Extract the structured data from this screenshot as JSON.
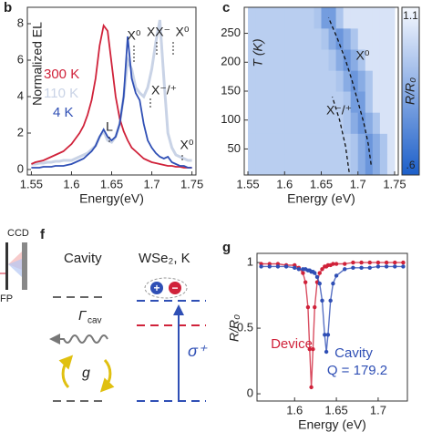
{
  "panel_labels": [
    "b",
    "c",
    "f",
    "g"
  ],
  "setup": {
    "ccd": "CCD",
    "fp": "FP"
  },
  "diagram": {
    "cavity": "Cavity",
    "material": "WSe₂, K",
    "gamma": "Γ",
    "gamma_sub": "cav",
    "coupling": "g",
    "polarization": "σ⁺",
    "plus": "+",
    "minus": "−"
  },
  "chart_data": [
    {
      "type": "line",
      "xlabel": "Energy(eV)",
      "ylabel": "Normalized EL",
      "x": [
        1.55,
        1.555,
        1.56,
        1.565,
        1.57,
        1.575,
        1.58,
        1.585,
        1.59,
        1.595,
        1.6,
        1.605,
        1.61,
        1.615,
        1.62,
        1.625,
        1.63,
        1.635,
        1.64,
        1.645,
        1.65,
        1.655,
        1.66,
        1.665,
        1.67,
        1.675,
        1.68,
        1.685,
        1.69,
        1.695,
        1.7,
        1.705,
        1.71,
        1.715,
        1.72,
        1.725,
        1.73,
        1.735,
        1.74,
        1.745,
        1.75
      ],
      "series": [
        {
          "name": "110 K",
          "color": "#c9d3e6",
          "values": [
            0.3,
            0.3,
            0.35,
            0.35,
            0.4,
            0.4,
            0.45,
            0.45,
            0.5,
            0.5,
            0.5,
            0.6,
            0.7,
            0.8,
            0.9,
            1.1,
            1.3,
            1.8,
            2.1,
            1.6,
            1.5,
            1.8,
            2.5,
            4.0,
            6.0,
            5.5,
            4.5,
            4.2,
            4.0,
            4.5,
            5.5,
            7.0,
            8.2,
            5.0,
            2.0,
            1.2,
            0.8,
            0.7,
            0.6,
            0.5,
            0.5
          ]
        },
        {
          "name": "300 K",
          "color": "#d0223a",
          "values": [
            0.3,
            0.4,
            0.45,
            0.5,
            0.6,
            0.7,
            0.8,
            0.9,
            1.0,
            1.2,
            1.4,
            1.7,
            2.0,
            2.4,
            3.0,
            3.8,
            5.0,
            6.8,
            7.9,
            7.6,
            5.8,
            4.0,
            2.8,
            2.1,
            1.6,
            1.2,
            1.0,
            0.8,
            0.6,
            0.5,
            0.4,
            0.35,
            0.3,
            0.25,
            0.2,
            0.2,
            0.15,
            0.15,
            0.1,
            0.1,
            0.1
          ]
        },
        {
          "name": "4 K",
          "color": "#2f4fb5",
          "values": [
            0.1,
            0.1,
            0.1,
            0.15,
            0.15,
            0.15,
            0.2,
            0.2,
            0.2,
            0.25,
            0.3,
            0.4,
            0.5,
            0.6,
            0.8,
            1.0,
            1.3,
            1.8,
            2.2,
            1.8,
            1.6,
            1.8,
            2.5,
            4.0,
            7.3,
            5.0,
            4.2,
            3.8,
            2.5,
            1.6,
            1.2,
            0.9,
            0.7,
            0.6,
            0.7,
            0.4,
            0.3,
            0.2,
            0.2,
            0.1,
            0.1
          ]
        }
      ],
      "xlim": [
        1.545,
        1.755
      ],
      "xticks": [
        1.55,
        1.6,
        1.65,
        1.7,
        1.75
      ],
      "ylim": [
        -0.3,
        8.9
      ],
      "yticks": [
        0,
        2,
        4,
        6,
        8
      ],
      "annotations": [
        "X⁰",
        "XX⁻",
        "X⁰",
        "X⁻/⁺",
        "L",
        "X⁰"
      ]
    },
    {
      "type": "heatmap",
      "xlabel": "Energy (eV)",
      "ylabel": "T (K)",
      "x": [
        1.555,
        1.565,
        1.575,
        1.585,
        1.595,
        1.605,
        1.615,
        1.625,
        1.635,
        1.645,
        1.655,
        1.665,
        1.675,
        1.685,
        1.695,
        1.705,
        1.715,
        1.725,
        1.735,
        1.745
      ],
      "y": [
        23,
        59,
        95,
        132,
        168,
        204,
        241,
        277
      ],
      "values": [
        [
          0.96,
          0.96,
          0.96,
          0.96,
          0.96,
          0.96,
          0.96,
          0.96,
          0.96,
          0.96,
          0.96,
          0.96,
          0.96,
          0.96,
          0.93,
          0.85,
          0.78,
          0.85,
          0.93,
          1.03
        ],
        [
          0.96,
          0.96,
          0.96,
          0.96,
          0.96,
          0.96,
          0.96,
          0.96,
          0.96,
          0.96,
          0.96,
          0.96,
          0.96,
          0.96,
          0.93,
          0.85,
          0.78,
          0.85,
          0.93,
          1.03
        ],
        [
          0.96,
          0.96,
          0.96,
          0.96,
          0.96,
          0.96,
          0.96,
          0.96,
          0.96,
          0.96,
          0.96,
          0.96,
          0.96,
          0.93,
          0.85,
          0.78,
          0.85,
          0.93,
          1.03,
          1.03
        ],
        [
          0.96,
          0.96,
          0.96,
          0.96,
          0.96,
          0.96,
          0.96,
          0.96,
          0.96,
          0.96,
          0.96,
          0.96,
          0.96,
          0.93,
          0.8,
          0.8,
          0.93,
          1.03,
          1.03,
          1.03
        ],
        [
          0.96,
          0.96,
          0.96,
          0.96,
          0.96,
          0.96,
          0.96,
          0.96,
          0.96,
          0.96,
          0.96,
          0.96,
          0.93,
          0.85,
          0.78,
          0.85,
          0.93,
          1.03,
          1.03,
          1.03
        ],
        [
          0.96,
          0.96,
          0.96,
          0.96,
          0.96,
          0.96,
          0.96,
          0.96,
          0.96,
          0.96,
          0.96,
          0.93,
          0.85,
          0.78,
          0.85,
          0.93,
          1.03,
          1.03,
          1.03,
          1.03
        ],
        [
          0.96,
          0.96,
          0.96,
          0.96,
          0.96,
          0.96,
          0.96,
          0.96,
          0.96,
          0.96,
          0.93,
          0.85,
          0.78,
          0.85,
          0.93,
          1.03,
          1.03,
          1.03,
          1.03,
          1.03
        ],
        [
          0.96,
          0.96,
          0.96,
          0.96,
          0.96,
          0.96,
          0.96,
          0.96,
          0.96,
          0.93,
          0.8,
          0.8,
          0.93,
          1.03,
          1.03,
          1.03,
          1.03,
          1.03,
          1.03,
          1.03
        ]
      ],
      "xlim": [
        1.545,
        1.755
      ],
      "xticks": [
        1.55,
        1.6,
        1.65,
        1.7,
        1.75
      ],
      "ylim": [
        5,
        295
      ],
      "yticks": [
        50,
        100,
        150,
        200,
        250
      ],
      "zlim": [
        0.6,
        1.1
      ],
      "colors": [
        "#1d5fc9",
        "#f6f9ff"
      ],
      "colorbar_label": "R/R₀",
      "colorbar_ticks": [
        1.1,
        {
          "value": 0.6,
          "label": ".6"
        }
      ],
      "guides": [
        {
          "name": "X⁰",
          "x": [
            1.718,
            1.714,
            1.708,
            1.7,
            1.692,
            1.683,
            1.672,
            1.66
          ],
          "y": [
            23,
            59,
            95,
            132,
            168,
            204,
            241,
            277
          ]
        },
        {
          "name": "X⁻/⁺",
          "x": [
            1.688,
            1.683,
            1.675,
            1.665
          ],
          "y": [
            10,
            55,
            100,
            140
          ]
        }
      ]
    },
    {
      "type": "scatter",
      "xlabel": "Energy (eV)",
      "ylabel": "R/R₀",
      "x": [
        1.56,
        1.57,
        1.58,
        1.59,
        1.6,
        1.605,
        1.61,
        1.613,
        1.616,
        1.618,
        1.62,
        1.622,
        1.624,
        1.627,
        1.63,
        1.633,
        1.636,
        1.638,
        1.64,
        1.643,
        1.646,
        1.65,
        1.66,
        1.67,
        1.68,
        1.69,
        1.7,
        1.71,
        1.72,
        1.73
      ],
      "series": [
        {
          "name": "Device",
          "color": "#d0223a",
          "values": [
            0.99,
            0.99,
            0.99,
            0.98,
            0.98,
            0.96,
            0.92,
            0.85,
            0.66,
            0.34,
            0.05,
            0.34,
            0.66,
            0.85,
            0.92,
            0.95,
            0.97,
            0.97,
            0.98,
            0.98,
            0.99,
            0.99,
            0.99,
            1.0,
            1.0,
            1.0,
            1.0,
            1.0,
            1.0,
            1.0
          ]
        },
        {
          "name": "Cavity",
          "color": "#2f4fb5",
          "values": [
            0.97,
            0.97,
            0.97,
            0.97,
            0.96,
            0.95,
            0.95,
            0.95,
            0.94,
            0.94,
            0.93,
            0.93,
            0.92,
            0.89,
            0.84,
            0.71,
            0.45,
            0.32,
            0.45,
            0.71,
            0.84,
            0.9,
            0.95,
            0.96,
            0.96,
            0.96,
            0.97,
            0.97,
            0.97,
            0.97
          ]
        }
      ],
      "annotation": "Q = 179.2",
      "xlim": [
        1.555,
        1.735
      ],
      "xticks": [
        1.6,
        1.65,
        1.7
      ],
      "ylim": [
        -0.055,
        1.07
      ],
      "yticks": [
        0,
        0.5,
        1
      ]
    }
  ]
}
